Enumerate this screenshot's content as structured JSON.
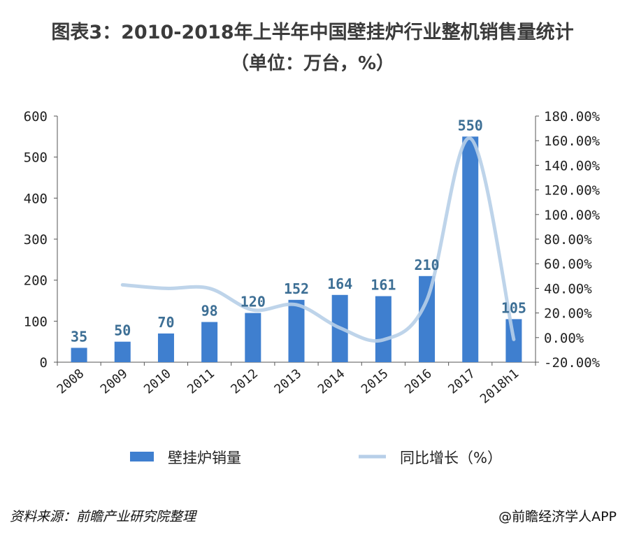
{
  "title": {
    "line1": "图表3：2010-2018年上半年中国壁挂炉行业整机销售量统计",
    "line2": "（单位：万台，%）"
  },
  "chart_data": {
    "type": "bar",
    "categories": [
      "2008",
      "2009",
      "2010",
      "2011",
      "2012",
      "2013",
      "2014",
      "2015",
      "2016",
      "2017",
      "2018h1"
    ],
    "series": [
      {
        "name": "壁挂炉销量",
        "type": "bar",
        "axis": "left",
        "values": [
          35,
          50,
          70,
          98,
          120,
          152,
          164,
          161,
          210,
          550,
          105
        ],
        "labels": [
          "35",
          "50",
          "70",
          "98",
          "120",
          "152",
          "164",
          "161",
          "210",
          "550",
          "105"
        ]
      },
      {
        "name": "同比增长（%）",
        "type": "line",
        "axis": "right",
        "values": [
          null,
          42.86,
          40.0,
          40.0,
          22.45,
          26.67,
          7.89,
          -1.83,
          30.43,
          161.9,
          -1.5
        ]
      }
    ],
    "y_left": {
      "min": 0,
      "max": 600,
      "ticks": [
        "0",
        "100",
        "200",
        "300",
        "400",
        "500",
        "600"
      ]
    },
    "y_right": {
      "min": -20,
      "max": 180,
      "ticks": [
        "-20.00%",
        "0.00%",
        "20.00%",
        "40.00%",
        "60.00%",
        "80.00%",
        "100.00%",
        "120.00%",
        "140.00%",
        "160.00%",
        "180.00%"
      ]
    },
    "legend": [
      "壁挂炉销量",
      "同比增长（%）"
    ],
    "colors": {
      "bar": "#3f7fcf",
      "line": "#b7cfe8",
      "label": "#3d6f95"
    }
  },
  "footer": {
    "source": "资料来源：前瞻产业研究院整理",
    "credit": "@前瞻经济学人APP"
  }
}
